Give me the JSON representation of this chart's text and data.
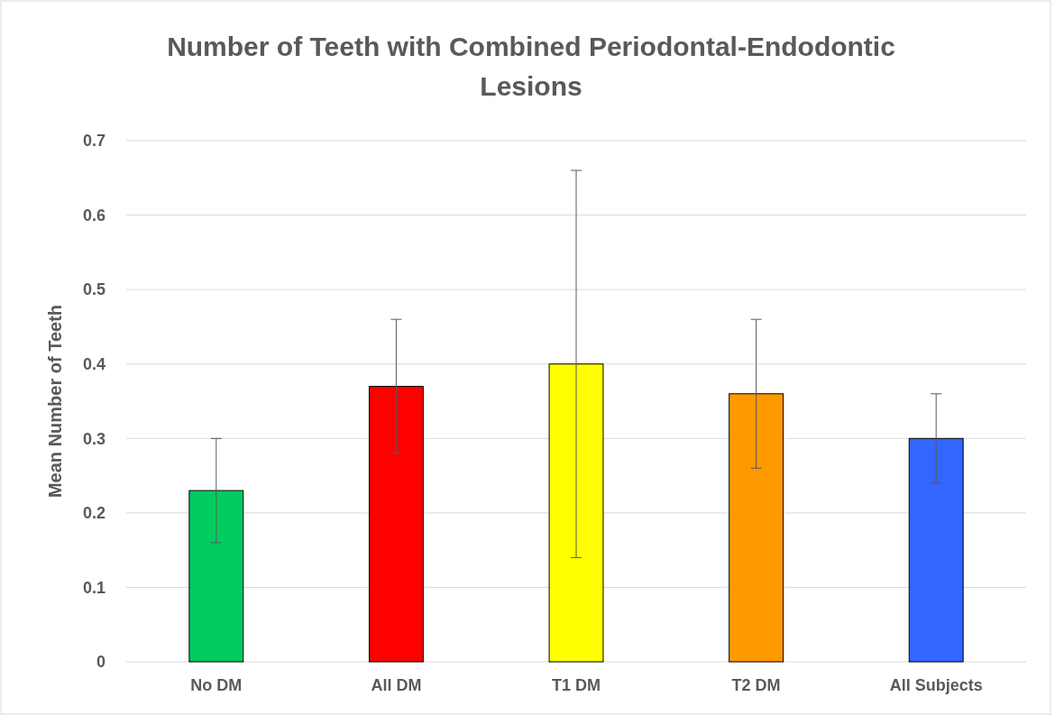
{
  "chart_data": {
    "type": "bar",
    "title": "Number of Teeth with Combined Periodontal-Endodontic Lesions",
    "ylabel": "Mean Number of Teeth",
    "categories": [
      "No DM",
      "All DM",
      "T1 DM",
      "T2 DM",
      "All Subjects"
    ],
    "values": [
      0.23,
      0.37,
      0.4,
      0.36,
      0.3
    ],
    "colors": [
      "#00cc5f",
      "#ff0000",
      "#ffff00",
      "#ff9900",
      "#3366ff"
    ],
    "errors": [
      [
        0.16,
        0.3
      ],
      [
        0.28,
        0.46
      ],
      [
        0.14,
        0.66
      ],
      [
        0.26,
        0.46
      ],
      [
        0.24,
        0.36
      ]
    ],
    "ylim": [
      0,
      0.7
    ],
    "yticks": [
      0,
      0.1,
      0.2,
      0.3,
      0.4,
      0.5,
      0.6,
      0.7
    ],
    "grid": "y"
  }
}
